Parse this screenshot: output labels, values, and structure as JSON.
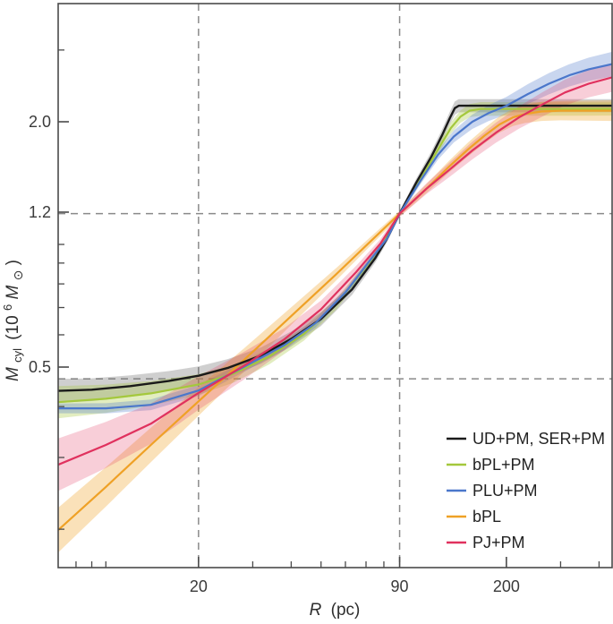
{
  "figure": {
    "background": "#ffffff"
  },
  "style": {
    "frame_color": "#4a4a4a",
    "tick_color": "#4a4a4a",
    "tick_label_color": "#3a3a3a",
    "axis_title_color": "#2e2e2e",
    "legend_text_color": "#222222",
    "guide_color": "#8a8a8a"
  },
  "chart_data": {
    "type": "line",
    "title": "",
    "xlabel": {
      "var": "R",
      "unit": "(pc)"
    },
    "ylabel": {
      "var": "M",
      "sub": "cyl",
      "open": "(10",
      "exp": "6",
      "unit_var": "M",
      "unit_sub": "⊙",
      "close": ")"
    },
    "axes": {
      "x": {
        "scale": "log",
        "min": 7.0,
        "max": 441,
        "major": [
          20,
          90,
          200
        ],
        "major_labels": [
          "20",
          "90",
          "200"
        ],
        "minor": [
          8,
          9,
          10,
          30,
          40,
          50,
          60,
          70,
          80,
          300,
          400
        ]
      },
      "y": {
        "scale": "log",
        "min": 0.161,
        "max": 3.9,
        "major": [
          0.5,
          1.2,
          2.0
        ],
        "major_labels": [
          "0.5",
          "1.2",
          "2.0"
        ],
        "minor": [
          0.2,
          0.3,
          0.4,
          0.6,
          0.7,
          0.8,
          0.9,
          1.0,
          3.0
        ]
      }
    },
    "guides": {
      "x_values_pc": [
        20,
        90
      ],
      "y_values_1e6Msun": [
        1.19,
        0.468
      ]
    },
    "legend_position": "bottom-right",
    "series": [
      {
        "name": "UD+PM, SER+PM",
        "color": "#1a1a1a",
        "band_color": "rgba(110,110,110,0.33)",
        "points": [
          [
            7,
            0.437
          ],
          [
            9,
            0.44
          ],
          [
            12,
            0.449
          ],
          [
            16,
            0.462
          ],
          [
            20,
            0.476
          ],
          [
            25,
            0.498
          ],
          [
            32,
            0.534
          ],
          [
            40,
            0.586
          ],
          [
            50,
            0.656
          ],
          [
            63,
            0.775
          ],
          [
            75,
            0.925
          ],
          [
            82,
            1.035
          ],
          [
            90,
            1.19
          ],
          [
            102,
            1.42
          ],
          [
            114,
            1.64
          ],
          [
            124,
            1.86
          ],
          [
            131,
            2.04
          ],
          [
            136,
            2.16
          ],
          [
            140,
            2.19
          ],
          [
            200,
            2.19
          ],
          [
            320,
            2.19
          ],
          [
            441,
            2.19
          ]
        ],
        "band_factor": [
          [
            7,
            1.07
          ],
          [
            20,
            1.055
          ],
          [
            50,
            1.04
          ],
          [
            75,
            1.025
          ],
          [
            90,
            1.013
          ],
          [
            110,
            1.028
          ],
          [
            135,
            1.038
          ],
          [
            441,
            1.038
          ]
        ]
      },
      {
        "name": "bPL+PM",
        "color": "#a4c83c",
        "band_color": "rgba(164,200,60,0.32)",
        "points": [
          [
            7,
            0.41
          ],
          [
            10,
            0.418
          ],
          [
            14,
            0.431
          ],
          [
            20,
            0.453
          ],
          [
            26,
            0.482
          ],
          [
            34,
            0.531
          ],
          [
            44,
            0.603
          ],
          [
            56,
            0.713
          ],
          [
            70,
            0.882
          ],
          [
            80,
            1.01
          ],
          [
            90,
            1.19
          ],
          [
            105,
            1.44
          ],
          [
            120,
            1.71
          ],
          [
            132,
            1.93
          ],
          [
            142,
            2.06
          ],
          [
            152,
            2.13
          ],
          [
            165,
            2.15
          ],
          [
            220,
            2.15
          ],
          [
            330,
            2.15
          ],
          [
            441,
            2.15
          ]
        ],
        "band_factor": [
          [
            7,
            1.095
          ],
          [
            20,
            1.06
          ],
          [
            50,
            1.035
          ],
          [
            90,
            1.013
          ],
          [
            130,
            1.032
          ],
          [
            160,
            1.04
          ],
          [
            441,
            1.038
          ]
        ]
      },
      {
        "name": "PLU+PM",
        "color": "#4b77cb",
        "band_color": "rgba(75,119,203,0.30)",
        "points": [
          [
            7,
            0.396
          ],
          [
            10,
            0.396
          ],
          [
            14,
            0.404
          ],
          [
            20,
            0.438
          ],
          [
            28,
            0.5
          ],
          [
            38,
            0.566
          ],
          [
            48,
            0.641
          ],
          [
            60,
            0.762
          ],
          [
            72,
            0.912
          ],
          [
            82,
            1.035
          ],
          [
            90,
            1.19
          ],
          [
            105,
            1.43
          ],
          [
            120,
            1.66
          ],
          [
            135,
            1.84
          ],
          [
            155,
            2.0
          ],
          [
            175,
            2.1
          ],
          [
            200,
            2.19
          ],
          [
            235,
            2.34
          ],
          [
            275,
            2.48
          ],
          [
            320,
            2.6
          ],
          [
            370,
            2.69
          ],
          [
            441,
            2.77
          ]
        ],
        "band_factor": [
          [
            7,
            1.028
          ],
          [
            20,
            1.032
          ],
          [
            50,
            1.025
          ],
          [
            90,
            1.012
          ],
          [
            150,
            1.04
          ],
          [
            250,
            1.06
          ],
          [
            441,
            1.072
          ]
        ]
      },
      {
        "name": "bPL",
        "color": "#efa126",
        "band_color": "rgba(239,161,38,0.32)",
        "points": [
          [
            7,
            0.199
          ],
          [
            10,
            0.254
          ],
          [
            14,
            0.322
          ],
          [
            20,
            0.412
          ],
          [
            28,
            0.519
          ],
          [
            40,
            0.667
          ],
          [
            56,
            0.845
          ],
          [
            70,
            0.993
          ],
          [
            90,
            1.19
          ],
          [
            110,
            1.37
          ],
          [
            130,
            1.55
          ],
          [
            150,
            1.71
          ],
          [
            170,
            1.85
          ],
          [
            190,
            1.97
          ],
          [
            210,
            2.05
          ],
          [
            230,
            2.09
          ],
          [
            260,
            2.12
          ],
          [
            300,
            2.13
          ],
          [
            441,
            2.13
          ]
        ],
        "band_factor": [
          [
            7,
            1.135
          ],
          [
            20,
            1.085
          ],
          [
            50,
            1.04
          ],
          [
            90,
            1.016
          ],
          [
            150,
            1.04
          ],
          [
            250,
            1.055
          ],
          [
            441,
            1.06
          ]
        ]
      },
      {
        "name": "PJ+PM",
        "color": "#e0315e",
        "band_color": "rgba(224,49,94,0.24)",
        "points": [
          [
            7,
            0.288
          ],
          [
            10,
            0.322
          ],
          [
            14,
            0.363
          ],
          [
            20,
            0.432
          ],
          [
            28,
            0.503
          ],
          [
            38,
            0.585
          ],
          [
            50,
            0.693
          ],
          [
            65,
            0.855
          ],
          [
            78,
            1.005
          ],
          [
            90,
            1.19
          ],
          [
            110,
            1.37
          ],
          [
            130,
            1.52
          ],
          [
            155,
            1.7
          ],
          [
            185,
            1.88
          ],
          [
            220,
            2.05
          ],
          [
            260,
            2.2
          ],
          [
            310,
            2.36
          ],
          [
            370,
            2.48
          ],
          [
            441,
            2.57
          ]
        ],
        "band_factor": [
          [
            7,
            1.16
          ],
          [
            20,
            1.1
          ],
          [
            50,
            1.05
          ],
          [
            90,
            1.018
          ],
          [
            150,
            1.05
          ],
          [
            250,
            1.07
          ],
          [
            441,
            1.085
          ]
        ]
      }
    ]
  }
}
